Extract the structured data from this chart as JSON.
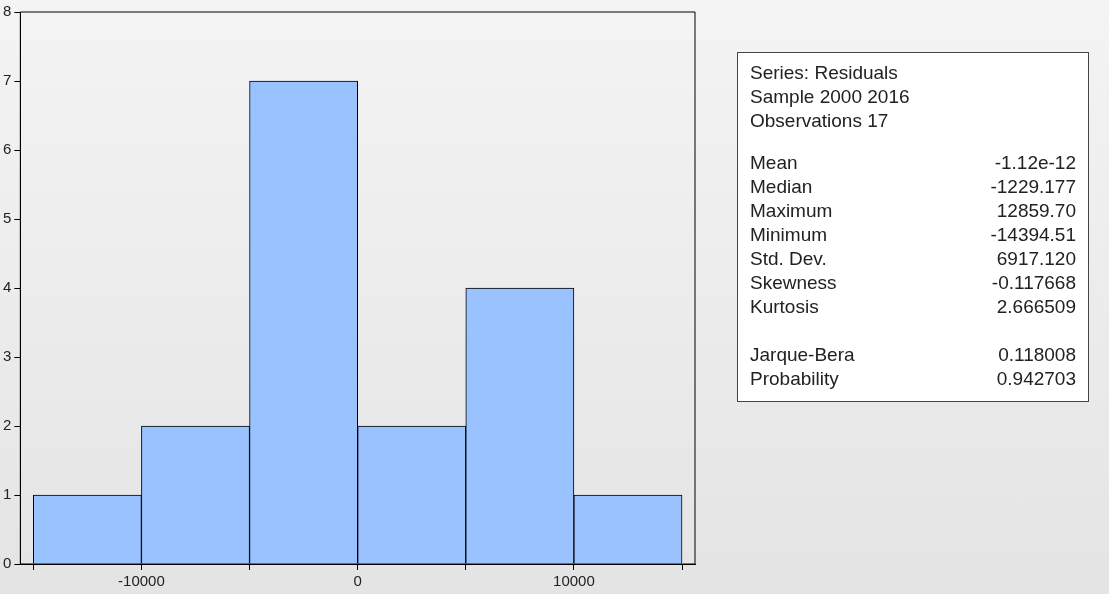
{
  "chart_data": [
    {
      "type": "histogram",
      "bins": [
        -15000,
        -10000,
        -5000,
        0,
        5000,
        10000,
        15000
      ],
      "values": [
        1,
        2,
        7,
        2,
        4,
        1
      ],
      "color": "#99c2ff",
      "xlim": [
        -15600,
        15600
      ],
      "xticks": [
        {
          "value": -15000,
          "label": null
        },
        -10000,
        {
          "value": -5000,
          "label": null
        },
        0,
        {
          "value": 5000,
          "label": null
        },
        10000,
        {
          "value": 15000,
          "label": null
        }
      ],
      "ylim": [
        0,
        8
      ],
      "yticks": [
        0,
        1,
        2,
        3,
        4,
        5,
        6,
        7,
        8
      ],
      "grid": false
    },
    {
      "type": "other",
      "annotations": [
        "Series: Residuals",
        "Sample 2000 2016",
        "Observations 17"
      ],
      "categories": [
        "Mean",
        "Median",
        "Maximum",
        "Minimum",
        "Std. Dev.",
        "Skewness",
        "Kurtosis",
        "Jarque-Bera",
        "Probability"
      ],
      "value_labels": [
        "-1.12e-12",
        "-1229.177",
        "12859.70",
        "-14394.51",
        "6917.120",
        "-0.117668",
        "2.666509",
        "0.118008",
        "0.942703"
      ]
    }
  ]
}
